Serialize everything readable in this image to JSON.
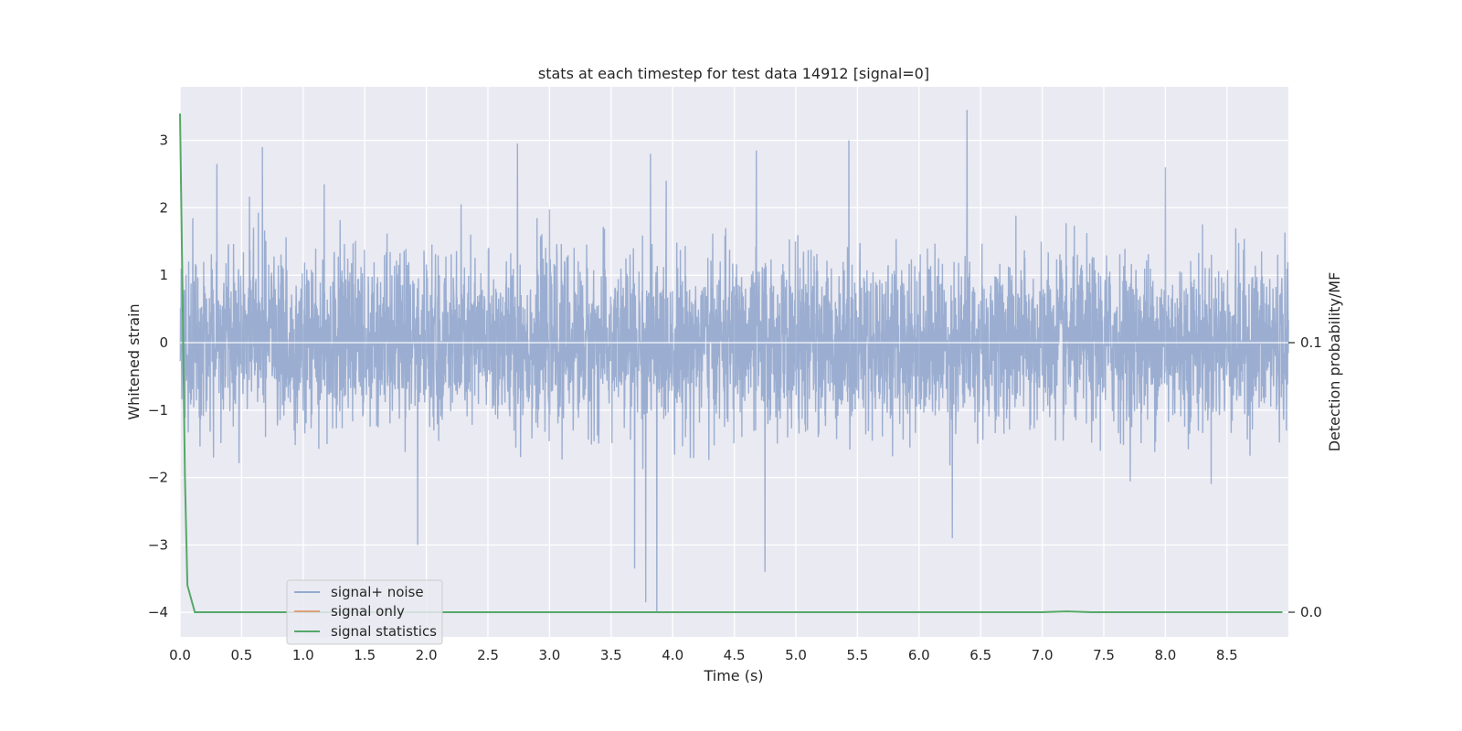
{
  "chart_data": {
    "type": "line",
    "title": "stats at each timestep for test data 14912 [signal=0]",
    "xlabel": "Time (s)",
    "ylabel": "Whitened strain",
    "ylabel_right": "Detection probability/MF",
    "xlim": [
      0.0,
      9.0
    ],
    "ylim": [
      -4.35,
      3.8
    ],
    "ylim_right": [
      -0.009,
      0.194
    ],
    "x_ticks": [
      "0.0",
      "0.5",
      "1.0",
      "1.5",
      "2.0",
      "2.5",
      "3.0",
      "3.5",
      "4.0",
      "4.5",
      "5.0",
      "5.5",
      "6.0",
      "6.5",
      "7.0",
      "7.5",
      "8.0",
      "8.5"
    ],
    "y_ticks": [
      "3",
      "2",
      "1",
      "0",
      "−1",
      "−2",
      "−3",
      "−4"
    ],
    "y_ticks_right": [
      "0.1",
      "0.0"
    ],
    "grid": true,
    "legend": {
      "placement": "lower-left",
      "entries": [
        "signal+ noise",
        "signal only",
        "signal statistics"
      ]
    },
    "series": [
      {
        "name": "signal+ noise",
        "color": "#4c72b0",
        "axis": "left",
        "description": "dense noise trace, roughly -1.5..1.5 with spikes",
        "spikes": [
          {
            "x": 0.3,
            "y": 2.65
          },
          {
            "x": 0.67,
            "y": 2.9
          },
          {
            "x": 1.17,
            "y": 2.35
          },
          {
            "x": 1.93,
            "y": -3.0
          },
          {
            "x": 2.74,
            "y": 2.95
          },
          {
            "x": 3.69,
            "y": -3.35
          },
          {
            "x": 3.78,
            "y": -3.85
          },
          {
            "x": 3.82,
            "y": 2.8
          },
          {
            "x": 3.87,
            "y": -4.0
          },
          {
            "x": 4.68,
            "y": 2.85
          },
          {
            "x": 4.75,
            "y": -3.4
          },
          {
            "x": 5.43,
            "y": 3.0
          },
          {
            "x": 6.27,
            "y": -2.9
          },
          {
            "x": 6.39,
            "y": 3.45
          },
          {
            "x": 8.0,
            "y": 2.6
          }
        ]
      },
      {
        "name": "signal only",
        "color": "#dd8452",
        "axis": "left",
        "values": []
      },
      {
        "name": "signal statistics",
        "color": "#55a868",
        "axis": "right",
        "x": [
          0.0,
          0.02,
          0.04,
          0.06,
          0.12,
          0.5,
          1.0,
          2.0,
          3.0,
          4.0,
          5.0,
          6.0,
          7.0,
          7.2,
          7.4,
          8.0,
          8.95
        ],
        "y": [
          0.185,
          0.12,
          0.05,
          0.01,
          0.0,
          0.0,
          0.0,
          0.0,
          0.0,
          0.0,
          0.0,
          0.0,
          0.0,
          0.0003,
          0.0,
          0.0,
          0.0
        ]
      }
    ]
  }
}
